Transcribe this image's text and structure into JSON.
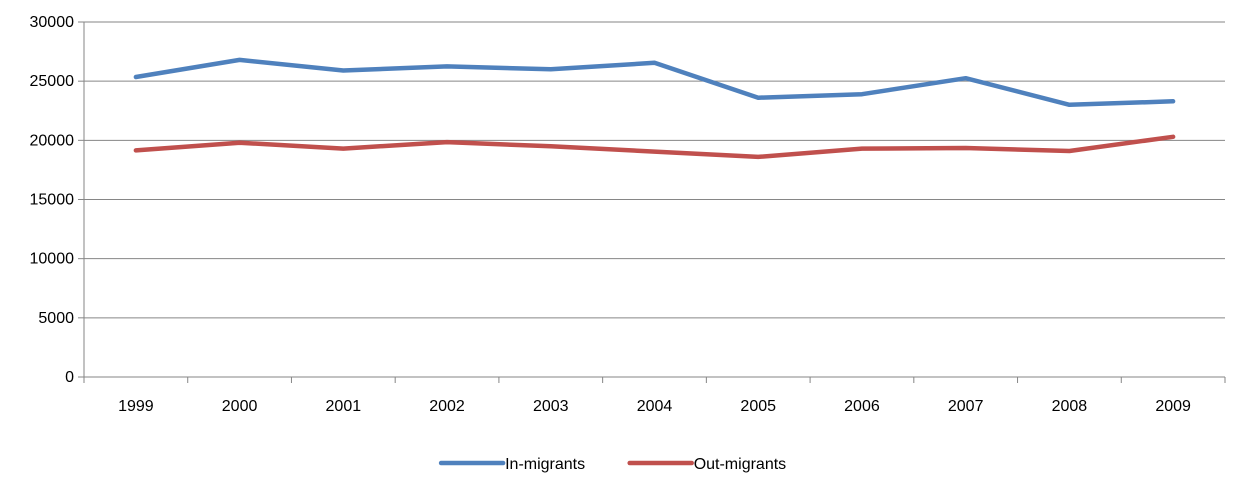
{
  "chart_data": {
    "type": "line",
    "title": "",
    "xlabel": "",
    "ylabel": "",
    "categories": [
      "1999",
      "2000",
      "2001",
      "2002",
      "2003",
      "2004",
      "2005",
      "2006",
      "2007",
      "2008",
      "2009"
    ],
    "ylim": [
      0,
      30000
    ],
    "yticks": [
      0,
      5000,
      10000,
      15000,
      20000,
      25000,
      30000
    ],
    "grid": true,
    "legend_position": "bottom",
    "series": [
      {
        "name": "In-migrants",
        "color": "#4F81BD",
        "values": [
          25350,
          26800,
          25900,
          26250,
          26000,
          26550,
          23600,
          23900,
          25250,
          23000,
          23300
        ]
      },
      {
        "name": "Out-migrants",
        "color": "#C0504D",
        "values": [
          19150,
          19800,
          19300,
          19850,
          19500,
          19050,
          18600,
          19300,
          19350,
          19100,
          20300
        ]
      }
    ]
  }
}
